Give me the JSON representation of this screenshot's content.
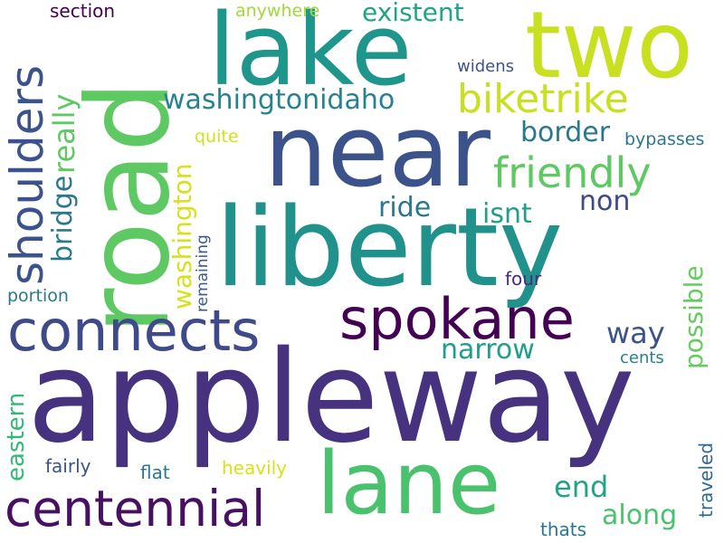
{
  "words": [
    {
      "text": "appleway",
      "color": "#46327e"
    },
    {
      "text": "liberty",
      "color": "#21918c"
    },
    {
      "text": "near",
      "color": "#3b528b"
    },
    {
      "text": "road",
      "color": "#5ec962"
    },
    {
      "text": "lake",
      "color": "#1f968b"
    },
    {
      "text": "two",
      "color": "#c8e020"
    },
    {
      "text": "lane",
      "color": "#4ac16d"
    },
    {
      "text": "spokane",
      "color": "#440154"
    },
    {
      "text": "connects",
      "color": "#3e4a89"
    },
    {
      "text": "centennial",
      "color": "#471063"
    },
    {
      "text": "shoulders",
      "color": "#3b528b"
    },
    {
      "text": "biketrike",
      "color": "#c8e020"
    },
    {
      "text": "friendly",
      "color": "#5ec962"
    },
    {
      "text": "washingtonidaho",
      "color": "#26828e"
    },
    {
      "text": "border",
      "color": "#2a788e"
    },
    {
      "text": "really",
      "color": "#5ec962"
    },
    {
      "text": "bridge",
      "color": "#2a788e"
    },
    {
      "text": "washington",
      "color": "#d5e21a"
    },
    {
      "text": "existent",
      "color": "#20a386"
    },
    {
      "text": "ride",
      "color": "#2a788e"
    },
    {
      "text": "isnt",
      "color": "#1f9e89"
    },
    {
      "text": "non",
      "color": "#3e4a89"
    },
    {
      "text": "possible",
      "color": "#65cb5e"
    },
    {
      "text": "narrow",
      "color": "#1f9e89"
    },
    {
      "text": "way",
      "color": "#3b528b"
    },
    {
      "text": "eastern",
      "color": "#35b779"
    },
    {
      "text": "end",
      "color": "#20a386"
    },
    {
      "text": "along",
      "color": "#4ac16d"
    },
    {
      "text": "heavily",
      "color": "#d8e219"
    },
    {
      "text": "fairly",
      "color": "#3b528b"
    },
    {
      "text": "flat",
      "color": "#2a788e"
    },
    {
      "text": "traveled",
      "color": "#31688e"
    },
    {
      "text": "cents",
      "color": "#26828e"
    },
    {
      "text": "thats",
      "color": "#2a788e"
    },
    {
      "text": "four",
      "color": "#472d7b"
    },
    {
      "text": "portion",
      "color": "#2a788e"
    },
    {
      "text": "remaining",
      "color": "#38598c"
    },
    {
      "text": "section",
      "color": "#440154"
    },
    {
      "text": "anywhere",
      "color": "#a0da39"
    },
    {
      "text": "widens",
      "color": "#3b528b"
    },
    {
      "text": "bypasses",
      "color": "#2a788e"
    },
    {
      "text": "quite",
      "color": "#d0e11c"
    }
  ]
}
